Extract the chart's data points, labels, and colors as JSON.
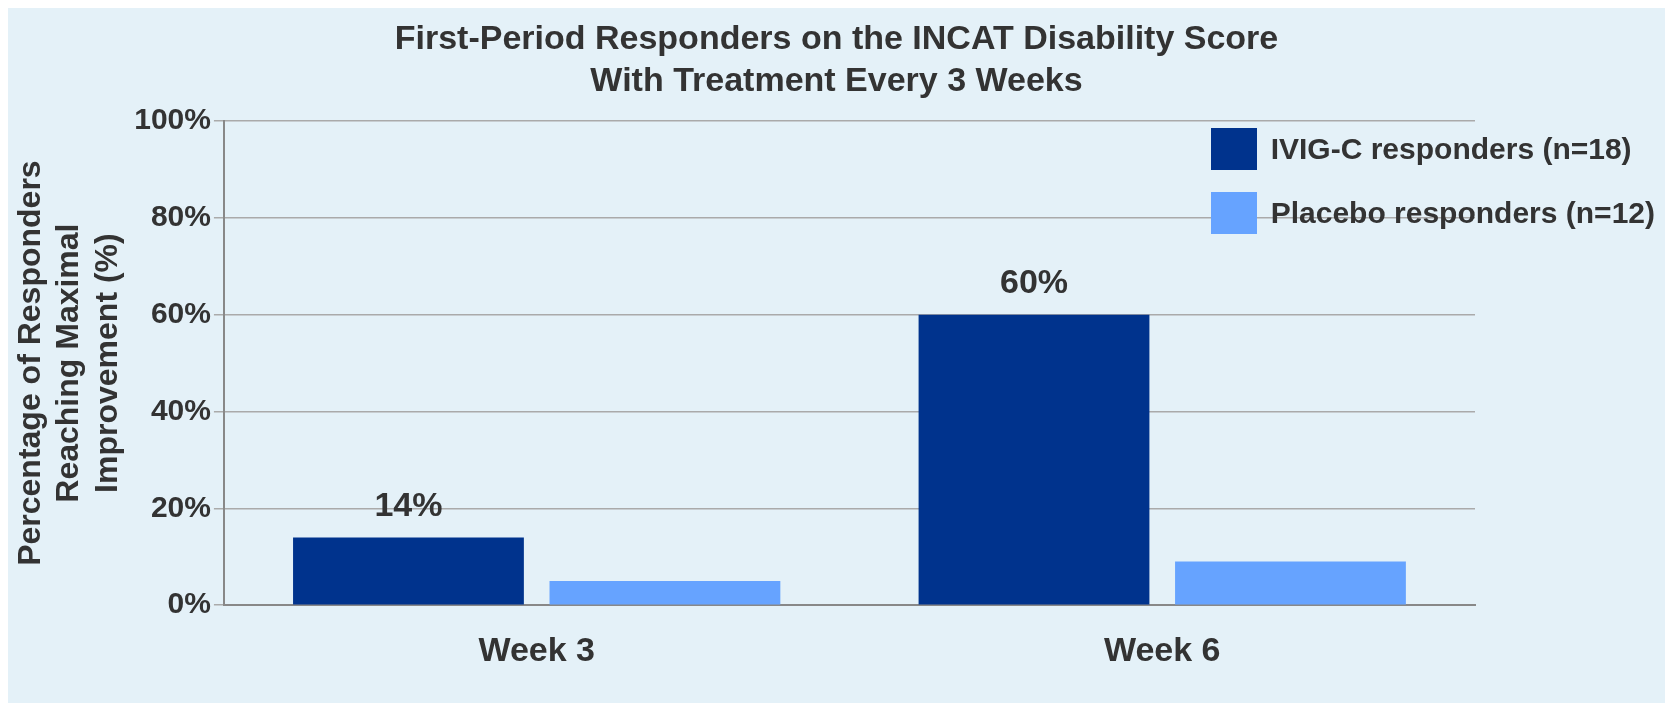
{
  "chart_data": {
    "type": "bar",
    "title": "First-Period Responders on the INCAT Disability Score\nWith Treatment Every 3 Weeks",
    "ylabel": "Percentage of Responders\nReaching Maximal\nImprovement (%)",
    "categories": [
      "Week 3",
      "Week 6"
    ],
    "series": [
      {
        "name": "IVIG-C responders (n=18)",
        "color": "#00338d",
        "values": [
          14,
          60
        ],
        "value_labels": [
          "14%",
          "60%"
        ]
      },
      {
        "name": "Placebo responders (n=12)",
        "color": "#66a3ff",
        "values": [
          5,
          9
        ],
        "value_labels": [
          null,
          null
        ]
      }
    ],
    "ylim": [
      0,
      100
    ],
    "yticks": [
      {
        "value": 0,
        "label": "0%"
      },
      {
        "value": 20,
        "label": "20%"
      },
      {
        "value": 40,
        "label": "40%"
      },
      {
        "value": 60,
        "label": "60%"
      },
      {
        "value": 80,
        "label": "80%"
      },
      {
        "value": 100,
        "label": "100%"
      }
    ],
    "grid": "y",
    "legend": "top right"
  }
}
